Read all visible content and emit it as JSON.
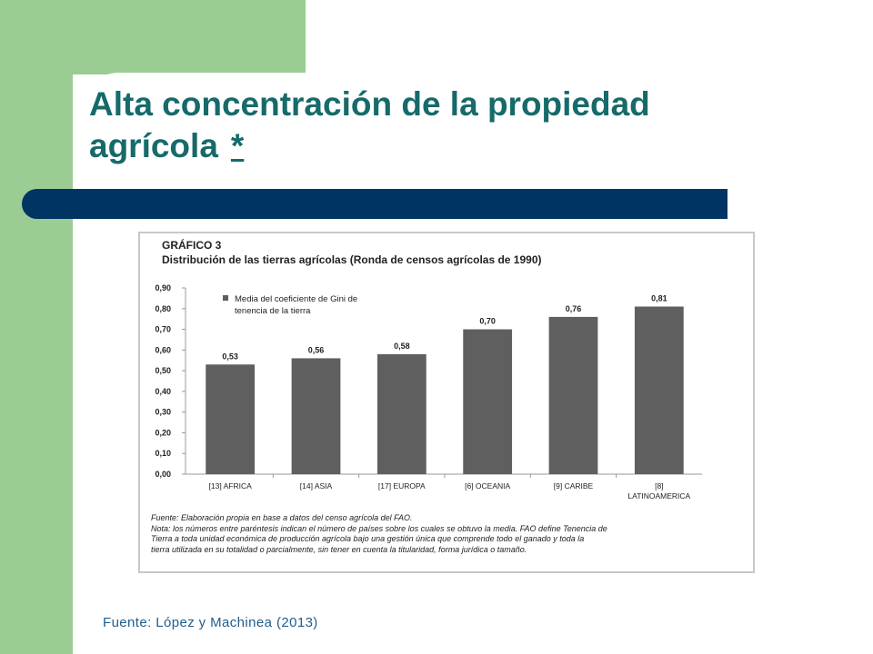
{
  "slide": {
    "title": "Alta concentración de la propiedad agrícola",
    "title_mark": "*",
    "source": "Fuente: López y Machinea (2013)"
  },
  "figure": {
    "label": "GRÁFICO 3",
    "title": "Distribución de las tierras agrícolas (Ronda de censos agrícolas de 1990)",
    "notes": [
      "Fuente: Elaboración propia en base a datos del censo agrícola del FAO.",
      "Nota: los números entre paréntesis indican el número de países sobre los cuales se obtuvo la media. FAO define Tenencia de",
      "Tierra  a toda unidad económica de producción agrícola bajo una gestión única que comprende todo el ganado y toda la",
      "tierra utilizada en su totalidad o parcialmente, sin tener en cuenta la titularidad, forma jurídica o tamaño."
    ]
  },
  "colors": {
    "green": "#9bcc94",
    "title": "#166a6a",
    "band": "#003462",
    "bar": "#5f5f5f",
    "source": "#1f5e8e"
  },
  "chart_data": {
    "type": "bar",
    "categories": [
      "[13]  AFRICA",
      "[14] ASIA",
      "[17] EUROPA",
      "[6] OCEANIA",
      "[9] CARIBE",
      "[8] LATINOAMERICA"
    ],
    "series": [
      {
        "name": "Media del coeficiente de Gini de tenencia de la tierra",
        "values": [
          0.53,
          0.56,
          0.58,
          0.7,
          0.76,
          0.81
        ],
        "labels": [
          "0,53",
          "0,56",
          "0,58",
          "0,70",
          "0,76",
          "0,81"
        ]
      }
    ],
    "legend_lines": [
      "Media del coeficiente de Gini de",
      "tenencia de la tierra"
    ],
    "legend_position": "top-left",
    "y_ticks": [
      "0,00",
      "0,10",
      "0,20",
      "0,30",
      "0,40",
      "0,50",
      "0,60",
      "0,70",
      "0,80",
      "0,90"
    ],
    "ylim": [
      0,
      0.9
    ],
    "grid": false
  }
}
